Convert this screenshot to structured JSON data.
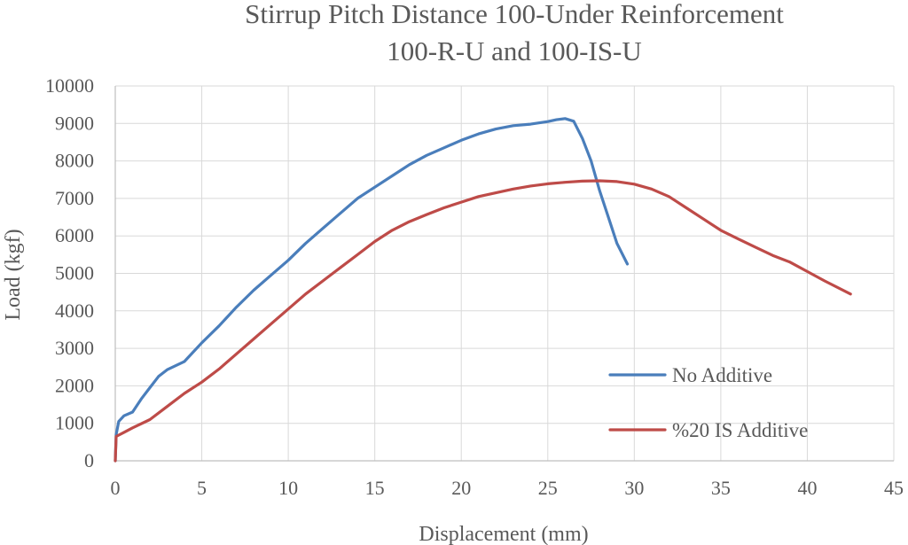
{
  "chart_data": {
    "type": "line",
    "title": [
      "Stirrup Pitch Distance 100-Under Reinforcement",
      "100-R-U and 100-IS-U"
    ],
    "xlabel": "Displacement (mm)",
    "ylabel": "Load (kgf)",
    "xlim": [
      0,
      45
    ],
    "ylim": [
      0,
      10000
    ],
    "xticks": [
      0,
      5,
      10,
      15,
      20,
      25,
      30,
      35,
      40,
      45
    ],
    "yticks": [
      0,
      1000,
      2000,
      3000,
      4000,
      5000,
      6000,
      7000,
      8000,
      9000,
      10000
    ],
    "xtick_labels": [
      "0",
      "5",
      "10",
      "15",
      "20",
      "25",
      "30",
      "35",
      "40",
      "45"
    ],
    "ytick_labels": [
      "0",
      "1000",
      "2000",
      "3000",
      "4000",
      "5000",
      "6000",
      "7000",
      "8000",
      "9000",
      "10000"
    ],
    "grid": "vertical and horizontal",
    "legend_position": "bottom-right",
    "series": [
      {
        "name": "No Additive",
        "color": "#4a7ebb",
        "points": [
          [
            0,
            0
          ],
          [
            0.05,
            700
          ],
          [
            0.2,
            1050
          ],
          [
            0.5,
            1200
          ],
          [
            1,
            1300
          ],
          [
            1.5,
            1650
          ],
          [
            2,
            1950
          ],
          [
            2.5,
            2250
          ],
          [
            3,
            2430
          ],
          [
            4,
            2650
          ],
          [
            5,
            3150
          ],
          [
            6,
            3600
          ],
          [
            7,
            4100
          ],
          [
            8,
            4550
          ],
          [
            9,
            4950
          ],
          [
            10,
            5350
          ],
          [
            11,
            5800
          ],
          [
            12,
            6200
          ],
          [
            13,
            6600
          ],
          [
            14,
            7000
          ],
          [
            15,
            7300
          ],
          [
            16,
            7600
          ],
          [
            17,
            7900
          ],
          [
            18,
            8150
          ],
          [
            19,
            8350
          ],
          [
            20,
            8550
          ],
          [
            21,
            8720
          ],
          [
            22,
            8850
          ],
          [
            23,
            8940
          ],
          [
            24,
            8980
          ],
          [
            25,
            9050
          ],
          [
            25.5,
            9100
          ],
          [
            26,
            9130
          ],
          [
            26.5,
            9060
          ],
          [
            27,
            8600
          ],
          [
            27.5,
            8000
          ],
          [
            28,
            7200
          ],
          [
            28.5,
            6500
          ],
          [
            29,
            5800
          ],
          [
            29.6,
            5250
          ]
        ]
      },
      {
        "name": "%20 IS Additive",
        "color": "#be4b48",
        "points": [
          [
            0,
            0
          ],
          [
            0.05,
            650
          ],
          [
            0.5,
            760
          ],
          [
            1,
            880
          ],
          [
            2,
            1100
          ],
          [
            3,
            1450
          ],
          [
            4,
            1800
          ],
          [
            5,
            2100
          ],
          [
            6,
            2450
          ],
          [
            7,
            2850
          ],
          [
            8,
            3250
          ],
          [
            9,
            3650
          ],
          [
            10,
            4050
          ],
          [
            11,
            4450
          ],
          [
            12,
            4800
          ],
          [
            13,
            5150
          ],
          [
            14,
            5500
          ],
          [
            15,
            5850
          ],
          [
            16,
            6150
          ],
          [
            17,
            6380
          ],
          [
            18,
            6570
          ],
          [
            19,
            6750
          ],
          [
            20,
            6900
          ],
          [
            21,
            7050
          ],
          [
            22,
            7150
          ],
          [
            23,
            7250
          ],
          [
            24,
            7330
          ],
          [
            25,
            7390
          ],
          [
            26,
            7430
          ],
          [
            27,
            7460
          ],
          [
            28,
            7470
          ],
          [
            29,
            7450
          ],
          [
            30,
            7380
          ],
          [
            31,
            7250
          ],
          [
            32,
            7050
          ],
          [
            33,
            6750
          ],
          [
            34,
            6450
          ],
          [
            35,
            6150
          ],
          [
            36,
            5920
          ],
          [
            37,
            5700
          ],
          [
            38,
            5480
          ],
          [
            39,
            5300
          ],
          [
            40,
            5050
          ],
          [
            41,
            4800
          ],
          [
            42.5,
            4450
          ]
        ]
      }
    ]
  }
}
